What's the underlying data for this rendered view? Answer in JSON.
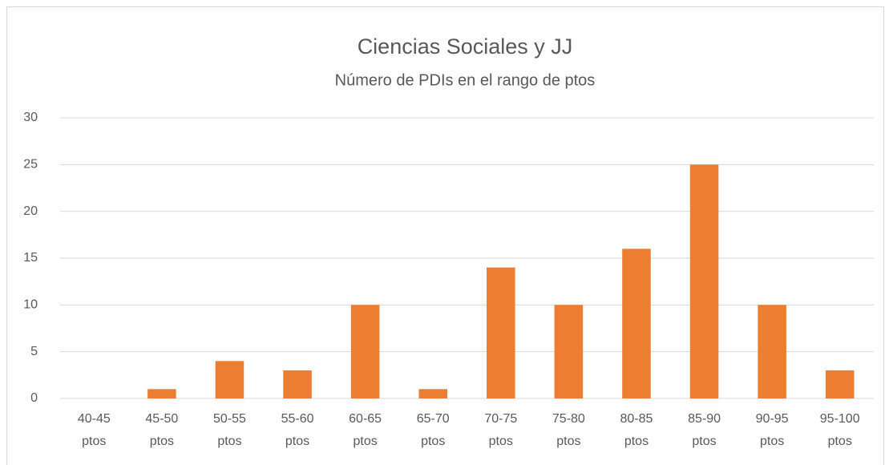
{
  "chart_data": {
    "type": "bar",
    "title": "Ciencias Sociales y JJ",
    "subtitle": "Número de PDIs en el rango de ptos",
    "categories": [
      "40-45 ptos",
      "45-50 ptos",
      "50-55 ptos",
      "55-60 ptos",
      "60-65 ptos",
      "65-70 ptos",
      "70-75 ptos",
      "75-80 ptos",
      "80-85 ptos",
      "85-90 ptos",
      "90-95 ptos",
      "95-100 ptos"
    ],
    "values": [
      0,
      1,
      4,
      3,
      10,
      1,
      14,
      10,
      16,
      25,
      10,
      3
    ],
    "color": "#ed7d31",
    "ylim": [
      0,
      30
    ],
    "yticks": [
      0,
      5,
      10,
      15,
      20,
      25,
      30
    ],
    "grid": true
  }
}
